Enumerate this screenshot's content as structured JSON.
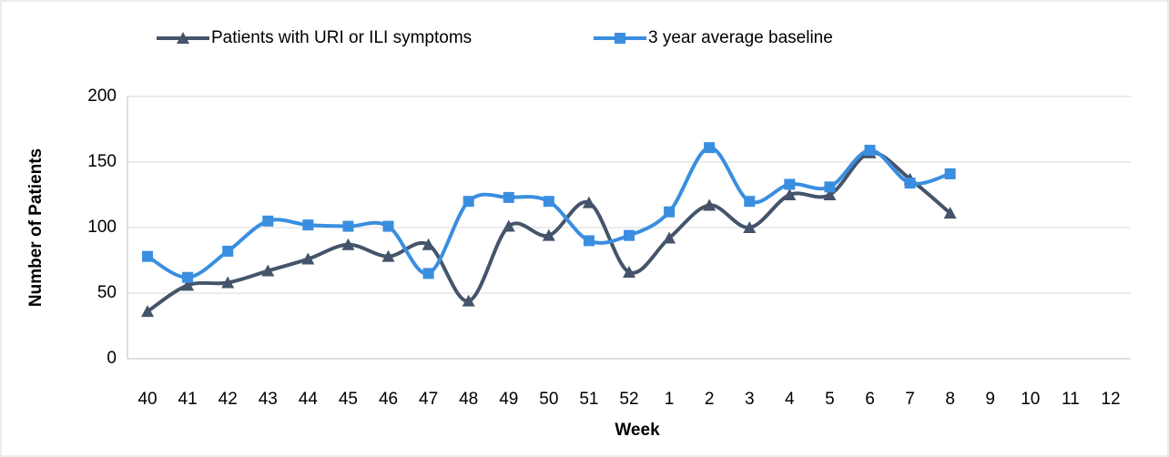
{
  "chart_data": {
    "type": "line",
    "x_label": "Week",
    "y_label": "Number of Patients",
    "categories": [
      "40",
      "41",
      "42",
      "43",
      "44",
      "45",
      "46",
      "47",
      "48",
      "49",
      "50",
      "51",
      "52",
      "1",
      "2",
      "3",
      "4",
      "5",
      "6",
      "7",
      "8",
      "9",
      "10",
      "11",
      "12"
    ],
    "series": [
      {
        "name": "Patients with URI or ILI symptoms",
        "color": "#44546a",
        "marker": "triangle",
        "values": [
          36,
          56,
          58,
          67,
          76,
          87,
          78,
          87,
          44,
          101,
          94,
          119,
          66,
          92,
          117,
          100,
          125,
          125,
          157,
          137,
          111,
          null,
          null,
          null,
          null
        ]
      },
      {
        "name": "3 year average baseline",
        "color": "#3a8ee0",
        "marker": "square",
        "values": [
          78,
          62,
          82,
          105,
          102,
          101,
          101,
          65,
          120,
          123,
          120,
          90,
          94,
          112,
          161,
          120,
          133,
          131,
          159,
          134,
          141,
          null,
          null,
          null,
          null
        ]
      }
    ],
    "ylim": [
      0,
      200
    ],
    "yticks": [
      0,
      50,
      100,
      150,
      200
    ],
    "grid": true,
    "legend": "top"
  }
}
